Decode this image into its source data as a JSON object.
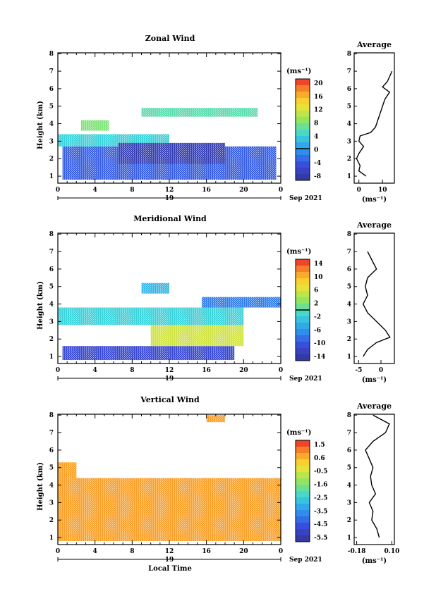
{
  "chart_data": [
    {
      "type": "heatmap",
      "title": "Zonal Wind",
      "ylabel": "Height (km)",
      "xlabel": "",
      "x_ticks": [
        "0",
        "4",
        "8",
        "12",
        "16",
        "20",
        "0"
      ],
      "y_ticks": [
        "1",
        "2",
        "3",
        "4",
        "5",
        "6",
        "7",
        "8"
      ],
      "xlim": [
        0,
        24
      ],
      "ylim": [
        0.6,
        8.05
      ],
      "date_number": "19",
      "date_label": "Sep 2021",
      "colorbar": {
        "unit": "(ms⁻¹)",
        "ticks": [
          "20",
          "16",
          "12",
          "8",
          "4",
          "0",
          "-4",
          "-8"
        ],
        "range": [
          -10,
          22
        ],
        "marker": 0
      },
      "bands": [
        {
          "x0": 0.5,
          "x1": 23.5,
          "y0": 0.8,
          "y1": 2.7,
          "value": -4
        },
        {
          "x0": 0.0,
          "x1": 12.0,
          "y0": 2.7,
          "y1": 3.4,
          "value": 4
        },
        {
          "x0": 6.5,
          "x1": 18.0,
          "y0": 1.7,
          "y1": 2.9,
          "value": -8
        },
        {
          "x0": 2.5,
          "x1": 5.5,
          "y0": 3.6,
          "y1": 4.2,
          "value": 8
        },
        {
          "x0": 9.0,
          "x1": 21.5,
          "y0": 4.4,
          "y1": 4.9,
          "value": 6
        }
      ],
      "average": {
        "title": "Average",
        "xlabel": "(ms⁻¹)",
        "x_ticks": [
          "0",
          "10"
        ],
        "xlim": [
          -2,
          15
        ],
        "height": [
          1.0,
          1.3,
          1.6,
          2.0,
          2.3,
          2.7,
          3.0,
          3.3,
          3.5,
          3.8,
          4.2,
          4.6,
          5.0,
          5.4,
          5.6,
          5.8,
          6.1,
          6.4,
          6.7,
          7.0
        ],
        "speed": [
          3,
          0,
          0.5,
          -1,
          0,
          2,
          0,
          0.5,
          5,
          7,
          8,
          9,
          10,
          11,
          12,
          13,
          10,
          12,
          13,
          14
        ]
      }
    },
    {
      "type": "heatmap",
      "title": "Meridional Wind",
      "ylabel": "Height (km)",
      "xlabel": "",
      "x_ticks": [
        "0",
        "4",
        "8",
        "12",
        "16",
        "20",
        "0"
      ],
      "y_ticks": [
        "1",
        "2",
        "3",
        "4",
        "5",
        "6",
        "7",
        "8"
      ],
      "xlim": [
        0,
        24
      ],
      "ylim": [
        0.6,
        8.05
      ],
      "date_number": "19",
      "date_label": "Sep 2021",
      "colorbar": {
        "unit": "(ms⁻¹)",
        "ticks": [
          "14",
          "10",
          "6",
          "2",
          "-2",
          "-6",
          "-10",
          "-14"
        ],
        "range": [
          -16,
          16
        ],
        "marker": 0
      },
      "bands": [
        {
          "x0": 0.5,
          "x1": 19.0,
          "y0": 0.8,
          "y1": 1.6,
          "value": -12
        },
        {
          "x0": 10.0,
          "x1": 20.0,
          "y0": 1.6,
          "y1": 2.8,
          "value": 6
        },
        {
          "x0": 0.0,
          "x1": 20.0,
          "y0": 2.8,
          "y1": 3.8,
          "value": -2
        },
        {
          "x0": 15.5,
          "x1": 24.0,
          "y0": 3.8,
          "y1": 4.4,
          "value": -8
        },
        {
          "x0": 9.0,
          "x1": 12.0,
          "y0": 4.6,
          "y1": 5.2,
          "value": -4
        }
      ],
      "average": {
        "title": "Average",
        "xlabel": "(ms⁻¹)",
        "x_ticks": [
          "-5",
          "0"
        ],
        "xlim": [
          -6,
          3
        ],
        "height": [
          1.0,
          1.4,
          1.8,
          2.1,
          2.5,
          3.0,
          3.5,
          4.0,
          4.5,
          5.0,
          5.5,
          6.0,
          6.5,
          7.0
        ],
        "speed": [
          -4,
          -3,
          -1,
          2,
          1,
          -1,
          -3,
          -4,
          -3,
          -3.5,
          -3,
          -1,
          -2,
          -3
        ]
      }
    },
    {
      "type": "heatmap",
      "title": "Vertical Wind",
      "ylabel": "Height (km)",
      "xlabel": "Local Time",
      "x_ticks": [
        "0",
        "4",
        "8",
        "12",
        "16",
        "20",
        "0"
      ],
      "y_ticks": [
        "1",
        "2",
        "3",
        "4",
        "5",
        "6",
        "7",
        "8"
      ],
      "xlim": [
        0,
        24
      ],
      "ylim": [
        0.6,
        8.05
      ],
      "date_number": "19",
      "date_label": "Sep 2021",
      "colorbar": {
        "unit": "(ms⁻¹)",
        "ticks": [
          "1.5",
          "0.6",
          "-0.5",
          "-1.6",
          "-2.5",
          "-3.5",
          "-4.5",
          "-5.5"
        ],
        "range": [
          -6,
          2
        ],
        "marker": null
      },
      "bands": [
        {
          "x0": 0.0,
          "x1": 24.0,
          "y0": 0.8,
          "y1": 4.4,
          "value": 0.9
        },
        {
          "x0": 0.0,
          "x1": 2.0,
          "y0": 4.4,
          "y1": 5.3,
          "value": 0.9
        },
        {
          "x0": 16.0,
          "x1": 18.0,
          "y0": 7.6,
          "y1": 8.0,
          "value": 0.9
        }
      ],
      "average": {
        "title": "Average",
        "xlabel": "(ms⁻¹)",
        "x_ticks": [
          "-0.18",
          "0.10"
        ],
        "xlim": [
          -0.2,
          0.12
        ],
        "height": [
          1.0,
          1.5,
          2.0,
          2.5,
          3.0,
          3.5,
          4.0,
          4.5,
          5.0,
          5.5,
          6.0,
          6.5,
          7.0,
          7.5,
          8.0
        ],
        "speed": [
          0.0,
          -0.02,
          -0.06,
          -0.05,
          -0.08,
          -0.03,
          -0.06,
          -0.07,
          -0.05,
          -0.08,
          -0.11,
          -0.05,
          0.05,
          0.08,
          -0.05
        ]
      }
    }
  ]
}
